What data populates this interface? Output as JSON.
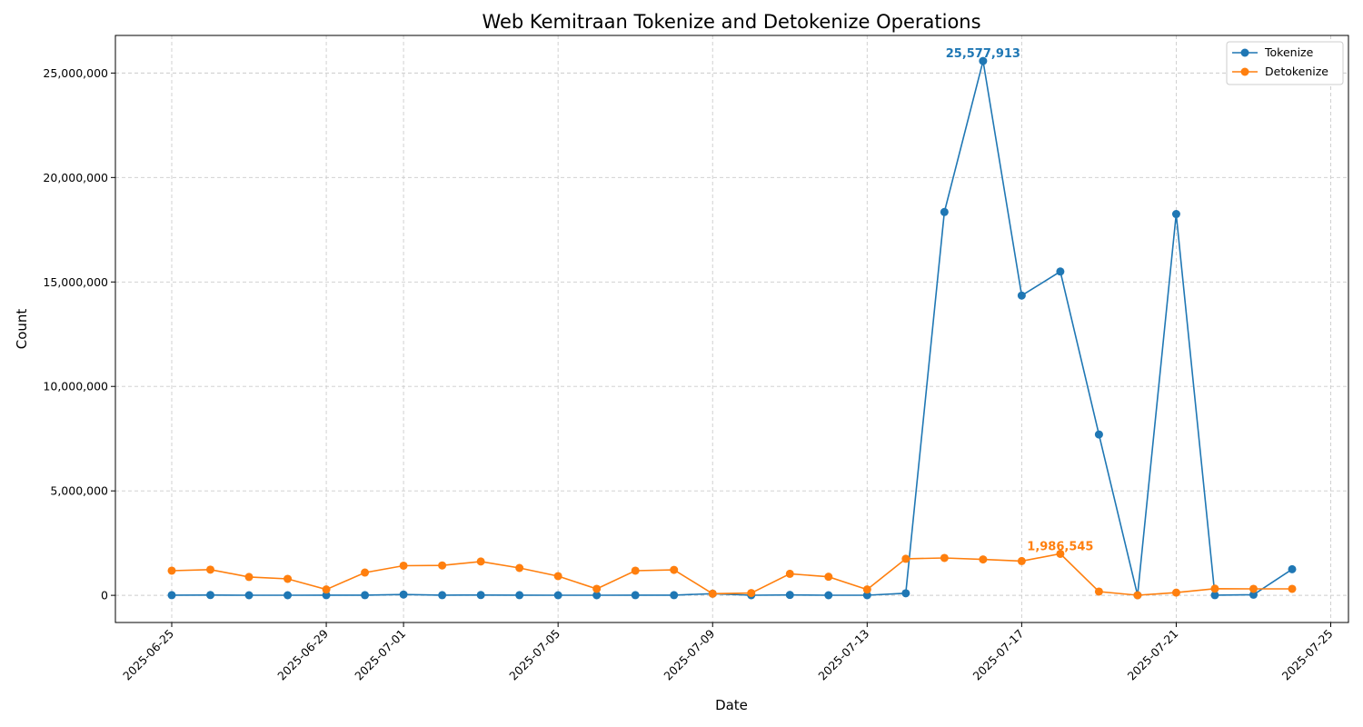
{
  "chart_data": {
    "type": "line",
    "title": "Web Kemitraan Tokenize and Detokenize Operations",
    "xlabel": "Date",
    "ylabel": "Count",
    "x_tick_labels": [
      "2025-06-25",
      "2025-06-29",
      "2025-07-01",
      "2025-07-05",
      "2025-07-09",
      "2025-07-13",
      "2025-07-17",
      "2025-07-21",
      "2025-07-25"
    ],
    "y_tick_labels": [
      "0",
      "5,000,000",
      "10,000,000",
      "15,000,000",
      "20,000,000",
      "25,000,000"
    ],
    "ylim": [
      -1300000,
      26800000
    ],
    "xlim": [
      "2025-06-23T13:00",
      "2025-07-25T11:00"
    ],
    "grid": true,
    "legend_position": "top-right",
    "series": [
      {
        "name": "Tokenize",
        "color": "#1f77b4",
        "points": [
          [
            "2025-06-25",
            10000
          ],
          [
            "2025-06-26",
            15000
          ],
          [
            "2025-06-27",
            5000
          ],
          [
            "2025-06-28",
            5000
          ],
          [
            "2025-06-29",
            8000
          ],
          [
            "2025-06-30",
            10000
          ],
          [
            "2025-07-01",
            40000
          ],
          [
            "2025-07-02",
            10000
          ],
          [
            "2025-07-03",
            15000
          ],
          [
            "2025-07-04",
            10000
          ],
          [
            "2025-07-05",
            5000
          ],
          [
            "2025-07-06",
            5000
          ],
          [
            "2025-07-07",
            8000
          ],
          [
            "2025-07-08",
            10000
          ],
          [
            "2025-07-09",
            80000
          ],
          [
            "2025-07-10",
            5000
          ],
          [
            "2025-07-11",
            20000
          ],
          [
            "2025-07-12",
            5000
          ],
          [
            "2025-07-13",
            5000
          ],
          [
            "2025-07-14",
            100000
          ],
          [
            "2025-07-15",
            18350000
          ],
          [
            "2025-07-16",
            25577913
          ],
          [
            "2025-07-17",
            14350000
          ],
          [
            "2025-07-18",
            15500000
          ],
          [
            "2025-07-19",
            7700000
          ],
          [
            "2025-07-20",
            5000
          ],
          [
            "2025-07-21",
            18250000
          ],
          [
            "2025-07-22",
            10000
          ],
          [
            "2025-07-23",
            30000
          ],
          [
            "2025-07-24",
            1250000
          ]
        ]
      },
      {
        "name": "Detokenize",
        "color": "#ff7f0e",
        "points": [
          [
            "2025-06-25",
            1180000
          ],
          [
            "2025-06-26",
            1230000
          ],
          [
            "2025-06-27",
            880000
          ],
          [
            "2025-06-28",
            790000
          ],
          [
            "2025-06-29",
            280000
          ],
          [
            "2025-06-30",
            1090000
          ],
          [
            "2025-07-01",
            1420000
          ],
          [
            "2025-07-02",
            1430000
          ],
          [
            "2025-07-03",
            1620000
          ],
          [
            "2025-07-04",
            1310000
          ],
          [
            "2025-07-05",
            920000
          ],
          [
            "2025-07-06",
            310000
          ],
          [
            "2025-07-07",
            1180000
          ],
          [
            "2025-07-08",
            1220000
          ],
          [
            "2025-07-09",
            80000
          ],
          [
            "2025-07-10",
            110000
          ],
          [
            "2025-07-11",
            1030000
          ],
          [
            "2025-07-12",
            890000
          ],
          [
            "2025-07-13",
            280000
          ],
          [
            "2025-07-14",
            1750000
          ],
          [
            "2025-07-15",
            1790000
          ],
          [
            "2025-07-16",
            1720000
          ],
          [
            "2025-07-17",
            1640000
          ],
          [
            "2025-07-18",
            1986545
          ],
          [
            "2025-07-19",
            180000
          ],
          [
            "2025-07-20",
            5000
          ],
          [
            "2025-07-21",
            130000
          ],
          [
            "2025-07-22",
            320000
          ],
          [
            "2025-07-23",
            310000
          ],
          [
            "2025-07-24",
            310000
          ]
        ]
      }
    ],
    "annotations": [
      {
        "series": "Tokenize",
        "x": "2025-07-16",
        "y": 25577913,
        "text": "25,577,913"
      },
      {
        "series": "Detokenize",
        "x": "2025-07-18",
        "y": 1986545,
        "text": "1,986,545"
      }
    ]
  }
}
